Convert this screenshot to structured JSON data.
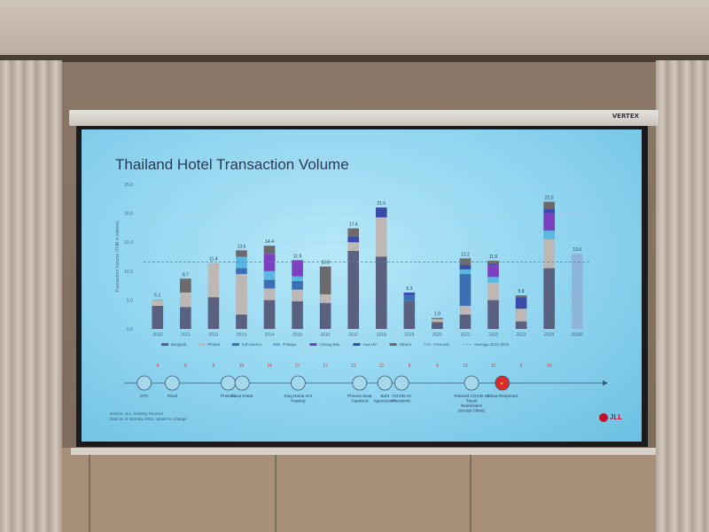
{
  "screen": {
    "title": "Thailand Hotel Transaction Volume",
    "source_line1": "Source: JLL, Industry Sources",
    "source_line2": "Data as of January 2025, subject to change",
    "logo": "JLL",
    "projector_brand": "VERTEX"
  },
  "chart_data": {
    "type": "bar",
    "stacked": true,
    "title": "Thailand Hotel Transaction Volume",
    "ylabel": "Transaction Volume (THB in billions)",
    "ylim": [
      0,
      25
    ],
    "yticks": [
      "0.0",
      "5.0",
      "10.0",
      "15.0",
      "20.0",
      "25.0"
    ],
    "grid": true,
    "average_line": {
      "label": "Average 2010-2024",
      "value": 11.6
    },
    "categories": [
      "2010",
      "2011",
      "2012",
      "2013",
      "2014",
      "2015",
      "2016",
      "2017",
      "2018",
      "2019",
      "2020",
      "2021",
      "2022",
      "2023",
      "2024",
      "2025F"
    ],
    "totals_labels": [
      "5.1",
      "8.7",
      "11.4",
      "13.6",
      "14.4",
      "11.9",
      "10.8",
      "17.4",
      "21.0",
      "6.3",
      "1.9",
      "12.2",
      "11.8",
      "5.8",
      "22.0",
      "13.0"
    ],
    "totals": [
      5.1,
      8.7,
      11.4,
      13.6,
      14.4,
      11.9,
      10.8,
      17.4,
      21.0,
      6.3,
      1.9,
      12.2,
      11.8,
      5.8,
      22.0,
      13.0
    ],
    "legend_position": "bottom",
    "series": [
      {
        "name": "Bangkok",
        "color": "#5a6180",
        "values": [
          4.0,
          3.8,
          5.5,
          2.5,
          5.0,
          4.8,
          4.5,
          13.5,
          12.5,
          4.8,
          1.2,
          2.5,
          5.0,
          1.3,
          10.5,
          0
        ]
      },
      {
        "name": "Phuket",
        "color": "#bdb8b5",
        "values": [
          1.0,
          2.5,
          5.9,
          7.0,
          2.0,
          2.0,
          1.5,
          1.5,
          6.8,
          0,
          0.5,
          1.5,
          3.0,
          2.2,
          5.0,
          0
        ]
      },
      {
        "name": "Koh Samui",
        "color": "#3b6fb3",
        "values": [
          0,
          0,
          0,
          1.0,
          1.5,
          1.5,
          0,
          0,
          0,
          1.0,
          0,
          5.5,
          0,
          0,
          0,
          0
        ]
      },
      {
        "name": "Pattaya",
        "color": "#5bb7e0",
        "values": [
          0.1,
          0,
          0,
          2.0,
          1.5,
          0.8,
          0,
          0,
          0,
          0,
          0,
          0.8,
          1.0,
          0,
          1.5,
          0
        ]
      },
      {
        "name": "Chiang Mai",
        "color": "#7b3fbf",
        "values": [
          0,
          0,
          0,
          0,
          3.0,
          2.8,
          0,
          0,
          0,
          0,
          0,
          0,
          2.0,
          0,
          3.0,
          0
        ]
      },
      {
        "name": "Hua Hin",
        "color": "#3a4aa8",
        "values": [
          0,
          0,
          0,
          0,
          0,
          0,
          0,
          1.0,
          1.7,
          0.5,
          0,
          0.8,
          0.3,
          2.0,
          0.8,
          0
        ]
      },
      {
        "name": "Others",
        "color": "#6c6a6c",
        "values": [
          0,
          2.4,
          0,
          1.1,
          1.4,
          0,
          4.8,
          1.4,
          0,
          0,
          0.2,
          1.1,
          0.5,
          0.3,
          1.2,
          0
        ]
      },
      {
        "name": "Forecast",
        "color": "#8fb6d9",
        "values": [
          0,
          0,
          0,
          0,
          0,
          0,
          0,
          0,
          0,
          0,
          0,
          0,
          0,
          0,
          0,
          13.0
        ]
      }
    ],
    "timeline": {
      "counts": [
        "4",
        "9",
        "8",
        "16",
        "14",
        "17",
        "17",
        "13",
        "12",
        "8",
        "4",
        "16",
        "12",
        "8",
        "16"
      ],
      "events": [
        {
          "label": "GFC",
          "icon": "grid-building-icon"
        },
        {
          "label": "Flood",
          "icon": "flood-icon"
        },
        {
          "label": "Protests",
          "icon": "protest-icon"
        },
        {
          "label": "Coup D'etat",
          "icon": "coup-icon"
        },
        {
          "label": "King Rama IX's Passing",
          "icon": "ribbon-icon"
        },
        {
          "label": "Phoenix Boat Capsized",
          "icon": "boat-icon"
        },
        {
          "label": "Baht Appreciation",
          "icon": "baht-icon"
        },
        {
          "label": "COVID-19 Pandemic",
          "icon": "virus-icon"
        },
        {
          "label": "Relaxed COVID-19 Travel Restrictions (except China)",
          "icon": "plane-icon"
        },
        {
          "label": "China Reopened",
          "icon": "china-flag-icon"
        }
      ]
    }
  }
}
